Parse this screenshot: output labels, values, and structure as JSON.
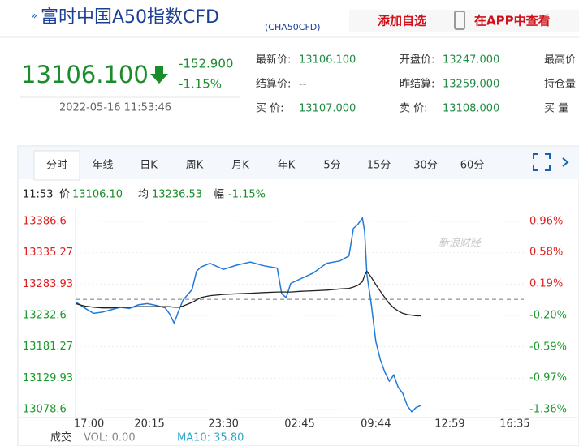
{
  "header": {
    "title": "富时中国A50指数CFD",
    "code": "(CHA50CFD)",
    "add_watchlist": "添加自选",
    "open_app": "在APP中查看"
  },
  "quote": {
    "price": "13106.100",
    "change": "-152.900",
    "change_pct": "-1.15%",
    "time": "2022-05-16 11:53:46",
    "fields": [
      [
        {
          "label": "最新价:",
          "value": "13106.100"
        },
        {
          "label": "开盘价:",
          "value": "13247.000"
        },
        {
          "label": "最高价"
        }
      ],
      [
        {
          "label": "结算价:",
          "value": "--"
        },
        {
          "label": "昨结算:",
          "value": "13259.000"
        },
        {
          "label": "持仓量"
        }
      ],
      [
        {
          "label": "买  价:",
          "value": "13107.000"
        },
        {
          "label": "卖  价:",
          "value": "13108.000"
        },
        {
          "label": "买  量"
        }
      ]
    ]
  },
  "tabs": [
    "分时",
    "年线",
    "日K",
    "周K",
    "月K",
    "年K",
    "5分",
    "15分",
    "30分",
    "60分"
  ],
  "info": {
    "time": "11:53",
    "price": "13106.10",
    "avg": "13236.53",
    "pct_label": "幅",
    "pct": "-1.15%"
  },
  "watermark": "新浪财经",
  "chart_data": {
    "type": "line",
    "xlim": [
      0,
      100
    ],
    "xticks": [
      {
        "value": 3,
        "label": "17:00"
      },
      {
        "value": 16.5,
        "label": "20:15"
      },
      {
        "value": 33,
        "label": "23:30"
      },
      {
        "value": 50,
        "label": "02:45"
      },
      {
        "value": 67,
        "label": "09:44"
      },
      {
        "value": 83.5,
        "label": "12:59"
      },
      {
        "value": 98,
        "label": "16:35"
      }
    ],
    "ylim": [
      13078.6,
      13386.6
    ],
    "yticks": [
      13386.6,
      13335.27,
      13283.93,
      13232.6,
      13181.27,
      13129.93,
      13078.6
    ],
    "y2lim": [
      -1.36,
      0.96
    ],
    "y2ticks": [
      {
        "value": 0.96,
        "label": "0.96%"
      },
      {
        "value": 0.58,
        "label": "0.58%"
      },
      {
        "value": 0.19,
        "label": "0.19%"
      },
      {
        "value": -0.2,
        "label": "-0.20%"
      },
      {
        "value": -0.59,
        "label": "-0.59%"
      },
      {
        "value": -0.97,
        "label": "-0.97%"
      },
      {
        "value": -1.36,
        "label": "-1.36%"
      }
    ],
    "reference": 13259,
    "x": [
      0,
      2,
      4,
      6,
      8,
      10,
      12,
      14,
      16,
      18,
      20,
      21,
      22,
      23,
      24,
      26,
      27,
      28,
      30,
      33,
      36,
      39,
      42,
      45,
      46,
      47,
      48,
      50,
      53,
      56,
      59,
      61,
      62,
      63,
      64,
      64.5,
      65,
      66,
      67,
      68,
      69,
      70,
      71,
      72,
      73,
      74,
      75,
      76,
      77
    ],
    "series": [
      {
        "name": "价",
        "color": "#1f7ad9",
        "values": [
          13255,
          13245,
          13236,
          13238,
          13242,
          13246,
          13244,
          13250,
          13252,
          13249,
          13245,
          13235,
          13220,
          13240,
          13258,
          13275,
          13305,
          13312,
          13318,
          13308,
          13315,
          13320,
          13314,
          13310,
          13268,
          13262,
          13285,
          13292,
          13302,
          13318,
          13322,
          13330,
          13375,
          13382,
          13392,
          13370,
          13300,
          13250,
          13190,
          13160,
          13140,
          13125,
          13135,
          13115,
          13105,
          13085,
          13075,
          13082,
          13085
        ]
      },
      {
        "name": "均",
        "color": "#222222",
        "values": [
          13252,
          13248,
          13246,
          13245,
          13245,
          13246,
          13246,
          13247,
          13247,
          13247,
          13247,
          13247,
          13246,
          13246,
          13248,
          13254,
          13258,
          13262,
          13265,
          13267,
          13268,
          13269,
          13270,
          13271,
          13271,
          13271,
          13271,
          13272,
          13273,
          13274,
          13276,
          13277,
          13279,
          13282,
          13288,
          13298,
          13305,
          13295,
          13283,
          13272,
          13262,
          13252,
          13245,
          13240,
          13236,
          13234,
          13233,
          13232,
          13232
        ]
      }
    ],
    "volume": {
      "label": "成交",
      "vol": "VOL: 0.00",
      "ma": "MA10: 35.80"
    }
  }
}
